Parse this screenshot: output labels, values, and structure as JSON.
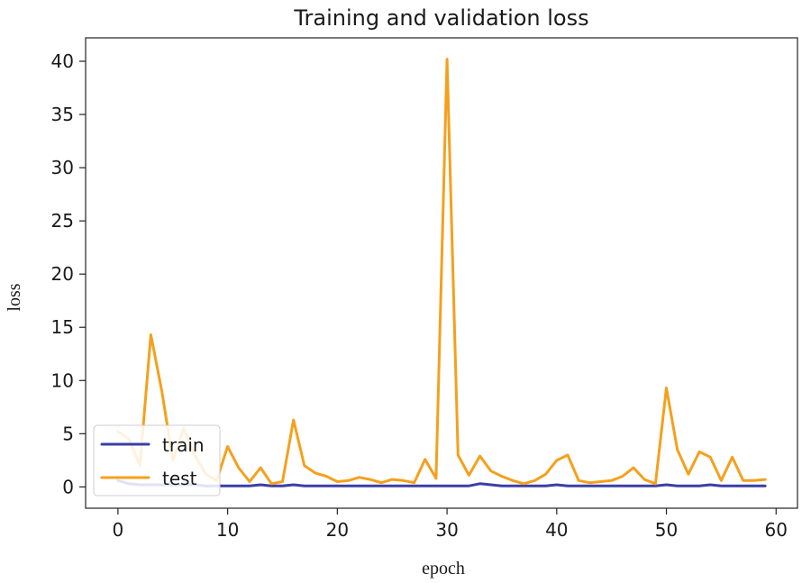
{
  "chart_data": {
    "type": "line",
    "title": "Training and validation loss",
    "xlabel": "epoch",
    "ylabel": "loss",
    "xlim": [
      -2.95,
      61.95
    ],
    "ylim": [
      -2.0,
      42.2
    ],
    "xticks": [
      0,
      10,
      20,
      30,
      40,
      50,
      60
    ],
    "yticks": [
      0,
      5,
      10,
      15,
      20,
      25,
      30,
      35,
      40
    ],
    "legend_position": "lower-left",
    "series": [
      {
        "name": "train",
        "color": "#3a3fa6",
        "x": [
          0,
          1,
          2,
          3,
          4,
          5,
          6,
          7,
          8,
          9,
          10,
          11,
          12,
          13,
          14,
          15,
          16,
          17,
          18,
          19,
          20,
          21,
          22,
          23,
          24,
          25,
          26,
          27,
          28,
          29,
          30,
          31,
          32,
          33,
          34,
          35,
          36,
          37,
          38,
          39,
          40,
          41,
          42,
          43,
          44,
          45,
          46,
          47,
          48,
          49,
          50,
          51,
          52,
          53,
          54,
          55,
          56,
          57,
          58,
          59
        ],
        "values": [
          0.6,
          0.3,
          0.2,
          0.2,
          0.2,
          0.2,
          0.2,
          0.2,
          0.1,
          0.1,
          0.1,
          0.1,
          0.1,
          0.2,
          0.1,
          0.1,
          0.2,
          0.1,
          0.1,
          0.1,
          0.1,
          0.1,
          0.1,
          0.1,
          0.1,
          0.1,
          0.1,
          0.1,
          0.1,
          0.1,
          0.1,
          0.1,
          0.1,
          0.3,
          0.2,
          0.1,
          0.1,
          0.1,
          0.1,
          0.1,
          0.2,
          0.1,
          0.1,
          0.1,
          0.1,
          0.1,
          0.1,
          0.1,
          0.1,
          0.1,
          0.2,
          0.1,
          0.1,
          0.1,
          0.2,
          0.1,
          0.1,
          0.1,
          0.1,
          0.1
        ]
      },
      {
        "name": "test",
        "color": "#f5a01d",
        "x": [
          0,
          1,
          2,
          3,
          4,
          5,
          6,
          7,
          8,
          9,
          10,
          11,
          12,
          13,
          14,
          15,
          16,
          17,
          18,
          19,
          20,
          21,
          22,
          23,
          24,
          25,
          26,
          27,
          28,
          29,
          30,
          31,
          32,
          33,
          34,
          35,
          36,
          37,
          38,
          39,
          40,
          41,
          42,
          43,
          44,
          45,
          46,
          47,
          48,
          49,
          50,
          51,
          52,
          53,
          54,
          55,
          56,
          57,
          58,
          59
        ],
        "values": [
          5.2,
          4.5,
          2.0,
          14.3,
          9.0,
          2.5,
          5.5,
          3.0,
          1.2,
          0.6,
          3.8,
          1.8,
          0.5,
          1.8,
          0.3,
          0.5,
          6.3,
          2.0,
          1.3,
          1.0,
          0.5,
          0.6,
          0.9,
          0.7,
          0.4,
          0.7,
          0.6,
          0.4,
          2.6,
          0.8,
          40.2,
          3.0,
          1.1,
          2.9,
          1.5,
          1.0,
          0.6,
          0.3,
          0.6,
          1.2,
          2.5,
          3.0,
          0.6,
          0.4,
          0.5,
          0.6,
          1.0,
          1.8,
          0.7,
          0.3,
          9.3,
          3.5,
          1.2,
          3.3,
          2.8,
          0.6,
          2.8,
          0.6,
          0.6,
          0.7
        ]
      }
    ]
  }
}
